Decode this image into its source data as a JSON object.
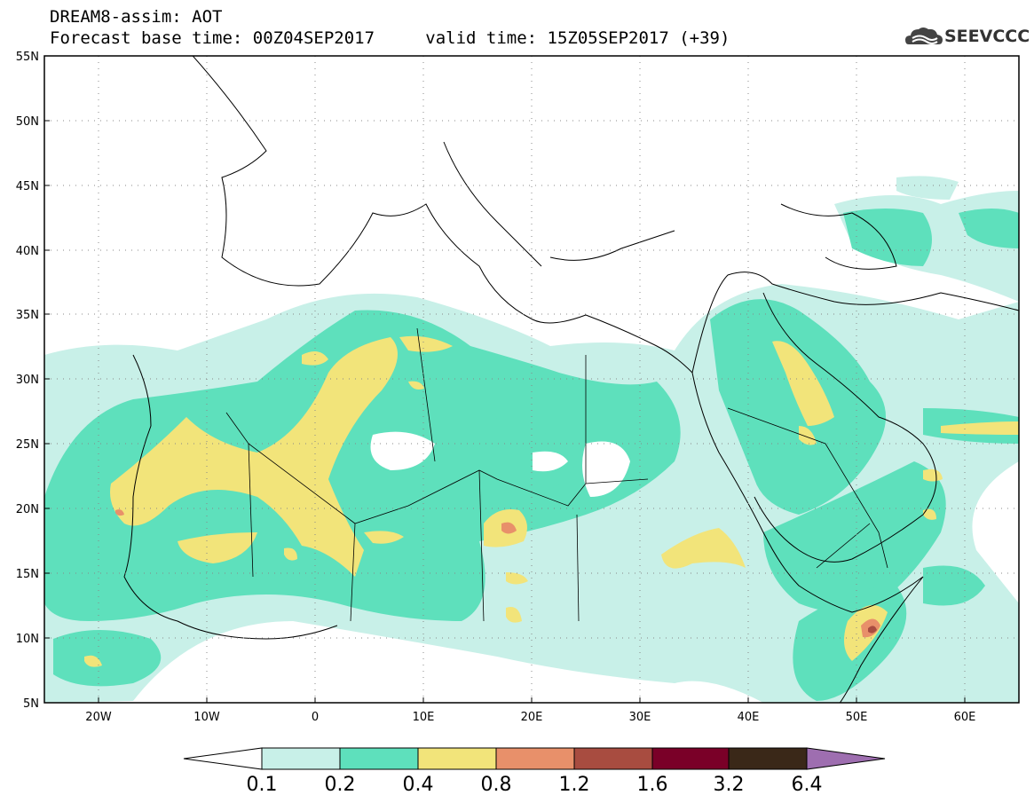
{
  "title": {
    "line1": "DREAM8-assim: AOT",
    "line2_base": "Forecast base time: 00Z04SEP2017",
    "line2_valid": "valid time: 15Z05SEP2017 (+39)"
  },
  "logo": {
    "text": "SEEVCCC",
    "icon": "cloud-icon"
  },
  "map": {
    "lon_range": [
      -25,
      65
    ],
    "lat_range": [
      5,
      55
    ],
    "lat_ticks": [
      "5N",
      "10N",
      "15N",
      "20N",
      "25N",
      "30N",
      "35N",
      "40N",
      "45N",
      "50N",
      "55N"
    ],
    "lon_ticks": [
      "20W",
      "10W",
      "0",
      "10E",
      "20E",
      "30E",
      "40E",
      "50E",
      "60E"
    ],
    "grid": "dotted"
  },
  "colorbar": {
    "labels": [
      "0.1",
      "0.2",
      "0.4",
      "0.8",
      "1.2",
      "1.6",
      "3.2",
      "6.4"
    ],
    "colors": {
      "below": "#ffffff",
      "c1": "#c8f0e8",
      "c2": "#5ee0bc",
      "c3": "#f2e47a",
      "c4": "#e8906a",
      "c5": "#a84c40",
      "c6": "#7a0028",
      "c7": "#3a2818",
      "above": "#9e6eb0"
    }
  }
}
